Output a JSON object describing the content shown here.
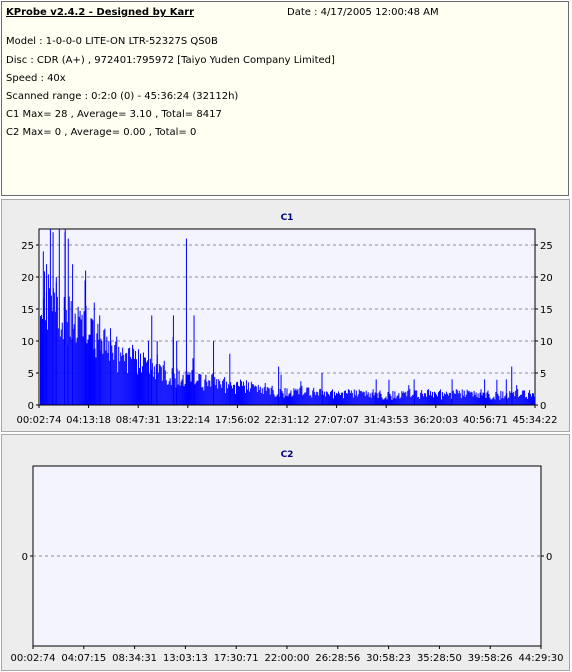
{
  "info": {
    "title": "KProbe v2.4.2 - Designed by Karr",
    "date": "Date : 4/17/2005 12:00:48 AM",
    "model": "Model : 1-0-0-0 LITE-ON LTR-52327S        QS0B",
    "disc": "Disc : CDR (A+) , 972401:795972 [Taiyo Yuden Company Limited]",
    "speed": "Speed : 40x",
    "range": "Scanned range : 0:2:0 (0) - 45:36:24 (32112h)",
    "c1_summary": "C1 Max= 28 , Average= 3.10 , Total= 8417",
    "c2_summary": "C2 Max= 0 , Average= 0.00 , Total= 0"
  },
  "colors": {
    "bar": "#0000ff",
    "plot_bg": "#f4f4ff",
    "grid": "#8c8c8c",
    "title": "#000080"
  },
  "chart_data": [
    {
      "type": "bar",
      "title": "C1",
      "ylim": [
        0,
        27.5
      ],
      "yticks": [
        "0",
        "5",
        "10",
        "15",
        "20",
        "25"
      ],
      "xticks": [
        "00:02:74",
        "04:13:18",
        "08:47:31",
        "13:22:14",
        "17:56:02",
        "22:31:12",
        "27:07:07",
        "31:43:53",
        "36:20:03",
        "40:56:71",
        "45:34:22"
      ],
      "xlim_minutes": [
        0.04,
        45.6
      ],
      "envelope": {
        "x_minutes": [
          0,
          1,
          2,
          3,
          4,
          5,
          6,
          7,
          8,
          9,
          10,
          11,
          12,
          13,
          14,
          15,
          16,
          17,
          18,
          19,
          20,
          21,
          22,
          23,
          24,
          25,
          26,
          27,
          28,
          29,
          30,
          31,
          32,
          33,
          34,
          35,
          36,
          37,
          38,
          39,
          40,
          41,
          42,
          43,
          44,
          45
        ],
        "base": [
          13,
          11,
          10,
          9,
          8,
          7,
          6,
          5,
          4.5,
          4,
          3.5,
          3,
          3,
          2.5,
          2.5,
          2,
          2,
          1.8,
          1.5,
          1.5,
          1.4,
          1.3,
          1.2,
          1.1,
          1,
          1,
          1,
          1,
          0.9,
          0.9,
          0.9,
          0.8,
          0.8,
          0.8,
          0.8,
          0.8,
          0.8,
          0.8,
          0.8,
          0.8,
          0.8,
          0.8,
          0.8,
          0.8,
          0.8,
          0.8
        ],
        "peak": [
          24,
          22,
          20,
          18,
          16,
          14,
          12,
          11,
          10,
          9,
          8,
          8,
          7,
          6,
          6,
          5,
          5,
          4.5,
          4,
          4,
          3.5,
          3.5,
          3,
          3,
          3,
          3,
          2.5,
          2.5,
          2.5,
          2.5,
          2.5,
          2.5,
          2.5,
          2.5,
          2.5,
          2.5,
          2.5,
          2.5,
          2.5,
          2.5,
          2.5,
          2.5,
          2.5,
          2.5,
          2.5,
          2.5
        ]
      },
      "spikes": [
        [
          0.3,
          24
        ],
        [
          0.6,
          22
        ],
        [
          1.2,
          27
        ],
        [
          1.5,
          20
        ],
        [
          2.3,
          27
        ],
        [
          2.6,
          26
        ],
        [
          3.0,
          22
        ],
        [
          4.2,
          21
        ],
        [
          5.0,
          16
        ],
        [
          5.5,
          14
        ],
        [
          6.5,
          12
        ],
        [
          10.0,
          10
        ],
        [
          10.3,
          14
        ],
        [
          10.8,
          10
        ],
        [
          12.3,
          14
        ],
        [
          12.6,
          10
        ],
        [
          13.5,
          26
        ],
        [
          14.2,
          14
        ],
        [
          16.0,
          10
        ],
        [
          17.5,
          8
        ],
        [
          22.0,
          6
        ],
        [
          26.0,
          5
        ],
        [
          31.0,
          4
        ],
        [
          34.5,
          4
        ],
        [
          38.0,
          4
        ],
        [
          41.0,
          4
        ],
        [
          43.0,
          4
        ],
        [
          43.5,
          6
        ]
      ]
    },
    {
      "type": "bar",
      "title": "C2",
      "ylim": [
        -1,
        1
      ],
      "yticks": [
        "0"
      ],
      "xticks": [
        "00:02:74",
        "04:07:15",
        "08:34:31",
        "13:03:13",
        "17:30:71",
        "22:00:00",
        "26:28:56",
        "30:58:23",
        "35:28:50",
        "39:58:26",
        "44:29:30"
      ],
      "values": []
    }
  ]
}
